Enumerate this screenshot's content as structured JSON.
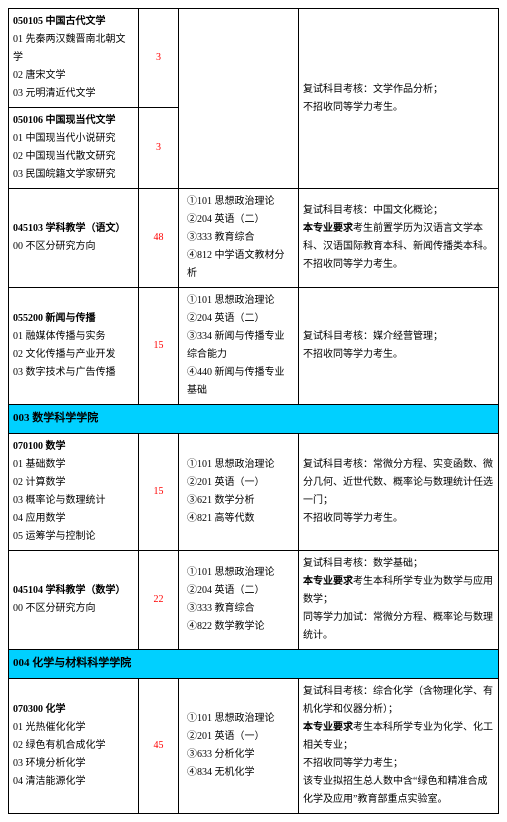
{
  "rows": [
    {
      "major_code": "050105",
      "major_name": "中国古代文学",
      "directions": [
        "01 先秦两汉魏晋南北朝文学",
        "02 唐宋文学",
        "03 元明清近代文学"
      ],
      "quota": "3",
      "exams": [],
      "notes_lines": [
        "复试科目考核：文学作品分析；",
        "不招收同等学力考生。"
      ]
    },
    {
      "major_code": "050106",
      "major_name": "中国现当代文学",
      "directions": [
        "01 中国现当代小说研究",
        "02 中国现当代散文研究",
        "03 民国皖籍文学家研究"
      ],
      "quota": "3",
      "exams": []
    },
    {
      "major_code": "045103",
      "major_name": "学科教学（语文）",
      "directions": [
        "00 不区分研究方向"
      ],
      "quota": "48",
      "exams": [
        "①101 思想政治理论",
        "②204 英语（二）",
        "③333 教育综合",
        "④812 中学语文教材分析"
      ],
      "notes_lines": [
        "复试科目考核：中国文化概论；",
        "<b>本专业要求</b>考生前置学历为汉语言文学本科、汉语国际教育本科、新闻传播类本科。",
        "不招收同等学力考生。"
      ]
    },
    {
      "major_code": "055200",
      "major_name": "新闻与传播",
      "directions": [
        "01 融媒体传播与实务",
        "02 文化传播与产业开发",
        "03 数字技术与广告传播"
      ],
      "quota": "15",
      "exams": [
        "①101 思想政治理论",
        "②204 英语（二）",
        "③334 新闻与传播专业综合能力",
        "④440 新闻与传播专业基础"
      ],
      "notes_lines": [
        "复试科目考核：媒介经营管理；",
        "不招收同等学力考生。"
      ]
    }
  ],
  "dept003": "003 数学科学学院",
  "rows2": [
    {
      "major_code": "070100",
      "major_name": "数学",
      "directions": [
        "01 基础数学",
        "02 计算数学",
        "03 概率论与数理统计",
        "04 应用数学",
        "05 运筹学与控制论"
      ],
      "quota": "15",
      "exams": [
        "①101 思想政治理论",
        "②201 英语（一）",
        "③621 数学分析",
        "④821 高等代数"
      ],
      "notes_lines": [
        "复试科目考核：常微分方程、实变函数、微分几何、近世代数、概率论与数理统计任选一门；",
        "不招收同等学力考生。"
      ]
    },
    {
      "major_code": "045104",
      "major_name": "学科教学（数学）",
      "directions": [
        "00 不区分研究方向"
      ],
      "quota": "22",
      "exams": [
        "①101 思想政治理论",
        "②204 英语（二）",
        "③333 教育综合",
        "④822 数学教学论"
      ],
      "notes_lines": [
        "复试科目考核：数学基础；",
        "<b>本专业要求</b>考生本科所学专业为数学与应用数学；",
        "同等学力加试：常微分方程、概率论与数理统计。"
      ]
    }
  ],
  "dept004": "004 化学与材料科学学院",
  "rows3": [
    {
      "major_code": "070300",
      "major_name": "化学",
      "directions": [
        "01 光热催化化学",
        "02 绿色有机合成化学",
        "03 环境分析化学",
        "04 清洁能源化学"
      ],
      "quota": "45",
      "exams": [
        "①101 思想政治理论",
        "②201 英语（一）",
        "③633 分析化学",
        "④834 无机化学"
      ],
      "notes_lines": [
        "复试科目考核：综合化学（含物理化学、有机化学和仪器分析）；",
        "<b>本专业要求</b>考生本科所学专业为化学、化工相关专业；",
        "不招收同等学力考生；",
        "该专业拟招生总人数中含“绿色和精准合成化学及应用”教育部重点实验室。"
      ]
    }
  ]
}
